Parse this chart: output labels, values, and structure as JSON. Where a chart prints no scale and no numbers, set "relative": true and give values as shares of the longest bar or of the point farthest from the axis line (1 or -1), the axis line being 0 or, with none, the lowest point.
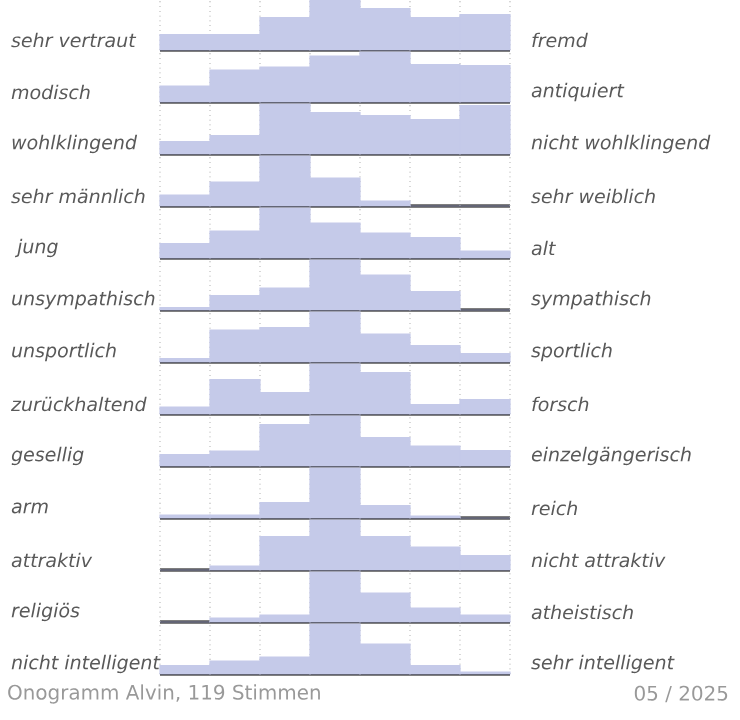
{
  "chart_data": [
    {
      "type": "bar",
      "relative": true,
      "ylabel": "sehr vertraut",
      "y2label": "fremd",
      "categories": [
        null,
        null,
        null,
        null,
        null,
        null,
        null
      ],
      "values": [
        0.31,
        0.31,
        0.65,
        1,
        0.83,
        0.65,
        0.71
      ],
      "color": "#c5cae9",
      "grid": "x"
    },
    {
      "type": "bar",
      "relative": true,
      "ylabel": "modisch",
      "y2label": "antiquiert",
      "categories": [
        null,
        null,
        null,
        null,
        null,
        null,
        null
      ],
      "values": [
        0.32,
        0.64,
        0.7,
        0.92,
        1,
        0.75,
        0.73
      ],
      "color": "#c5cae9",
      "grid": "x"
    },
    {
      "type": "bar",
      "relative": true,
      "ylabel": "wohlklingend",
      "y2label": "nicht wohlklingend",
      "categories": [
        null,
        null,
        null,
        null,
        null,
        null,
        null
      ],
      "values": [
        0.25,
        0.37,
        1,
        0.83,
        0.77,
        0.69,
        0.97
      ],
      "color": "#c5cae9",
      "grid": "x"
    },
    {
      "type": "bar",
      "relative": true,
      "ylabel": "sehr männlich",
      "y2label": "sehr weiblich",
      "categories": [
        null,
        null,
        null,
        null,
        null,
        null,
        null
      ],
      "values": [
        0.22,
        0.48,
        1,
        0.56,
        0.1,
        0,
        0
      ],
      "color": "#c5cae9",
      "grid": "x"
    },
    {
      "type": "bar",
      "relative": true,
      "ylabel": " jung",
      "y2label": "alt",
      "categories": [
        null,
        null,
        null,
        null,
        null,
        null,
        null
      ],
      "values": [
        0.29,
        0.54,
        1,
        0.7,
        0.5,
        0.41,
        0.14
      ],
      "color": "#c5cae9",
      "grid": "x"
    },
    {
      "type": "bar",
      "relative": true,
      "ylabel": "unsympathisch",
      "y2label": "sympathisch",
      "categories": [
        null,
        null,
        null,
        null,
        null,
        null,
        null
      ],
      "values": [
        0.05,
        0.29,
        0.44,
        1,
        0.7,
        0.37,
        0
      ],
      "color": "#c5cae9",
      "grid": "x"
    },
    {
      "type": "bar",
      "relative": true,
      "ylabel": "unsportlich",
      "y2label": "sportlich",
      "categories": [
        null,
        null,
        null,
        null,
        null,
        null,
        null
      ],
      "values": [
        0.07,
        0.64,
        0.69,
        1,
        0.56,
        0.33,
        0.17
      ],
      "color": "#c5cae9",
      "grid": "x"
    },
    {
      "type": "bar",
      "relative": true,
      "ylabel": "zurückhaltend",
      "y2label": "forsch",
      "categories": [
        null,
        null,
        null,
        null,
        null,
        null,
        null
      ],
      "values": [
        0.14,
        0.69,
        0.43,
        1,
        0.83,
        0.19,
        0.29
      ],
      "color": "#c5cae9",
      "grid": "x"
    },
    {
      "type": "bar",
      "relative": true,
      "ylabel": "gesellig",
      "y2label": "einzelgängerisch",
      "categories": [
        null,
        null,
        null,
        null,
        null,
        null,
        null
      ],
      "values": [
        0.23,
        0.3,
        0.83,
        1,
        0.57,
        0.4,
        0.31
      ],
      "color": "#c5cae9",
      "grid": "x"
    },
    {
      "type": "bar",
      "relative": true,
      "ylabel": "arm",
      "y2label": "reich",
      "categories": [
        null,
        null,
        null,
        null,
        null,
        null,
        null
      ],
      "values": [
        0.06,
        0.06,
        0.31,
        1,
        0.25,
        0.04,
        0
      ],
      "color": "#c5cae9",
      "grid": "x"
    },
    {
      "type": "bar",
      "relative": true,
      "ylabel": "attraktiv",
      "y2label": "nicht attraktiv",
      "categories": [
        null,
        null,
        null,
        null,
        null,
        null,
        null
      ],
      "values": [
        0,
        0.08,
        0.67,
        1,
        0.67,
        0.46,
        0.29
      ],
      "color": "#c5cae9",
      "grid": "x"
    },
    {
      "type": "bar",
      "relative": true,
      "ylabel": "religiös",
      "y2label": "atheistisch",
      "categories": [
        null,
        null,
        null,
        null,
        null,
        null,
        null
      ],
      "values": [
        0,
        0.08,
        0.14,
        1,
        0.58,
        0.28,
        0.14
      ],
      "color": "#c5cae9",
      "grid": "x"
    },
    {
      "type": "bar",
      "relative": true,
      "ylabel": "nicht intelligent",
      "y2label": "sehr intelligent",
      "categories": [
        null,
        null,
        null,
        null,
        null,
        null,
        null
      ],
      "values": [
        0.17,
        0.26,
        0.34,
        1,
        0.6,
        0.17,
        0.04
      ],
      "color": "#c5cae9",
      "grid": "x",
      "annotations": [
        "Onogramm Alvin, 119 Stimmen",
        "05 / 2025"
      ]
    }
  ]
}
